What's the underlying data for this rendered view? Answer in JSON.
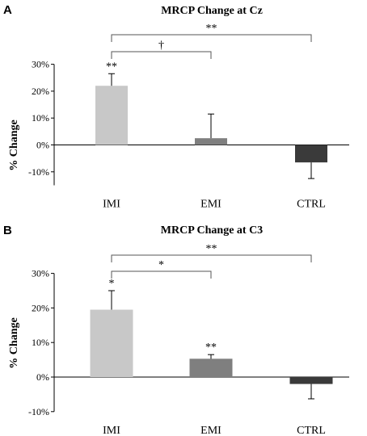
{
  "chart_data": [
    {
      "type": "bar",
      "panel": "A",
      "title": "MRCP Change at Cz",
      "ylabel": "% Change",
      "categories": [
        "IMI",
        "EMI",
        "CTRL"
      ],
      "values": [
        22,
        2.5,
        -6.5
      ],
      "error_plus": [
        4.5,
        9,
        0
      ],
      "error_minus": [
        0,
        0,
        6
      ],
      "bar_colors": [
        "#c8c8c8",
        "#7f7f7f",
        "#3a3a3a"
      ],
      "ylim": [
        -15,
        30
      ],
      "yticks": [
        -10,
        0,
        10,
        20,
        30
      ],
      "ytick_labels": [
        "-10%",
        "0%",
        "10%",
        "20%",
        "30%"
      ],
      "bar_annotations": [
        "**",
        "",
        ""
      ],
      "comparisons": [
        {
          "from": 0,
          "to": 1,
          "label": "†"
        },
        {
          "from": 0,
          "to": 2,
          "label": "**"
        }
      ]
    },
    {
      "type": "bar",
      "panel": "B",
      "title": "MRCP Change at C3",
      "ylabel": "% Change",
      "categories": [
        "IMI",
        "EMI",
        "CTRL"
      ],
      "values": [
        19.5,
        5.3,
        -2
      ],
      "error_plus": [
        5.5,
        1.2,
        0
      ],
      "error_minus": [
        0,
        0,
        4.3
      ],
      "bar_colors": [
        "#c8c8c8",
        "#7f7f7f",
        "#3a3a3a"
      ],
      "ylim": [
        -10,
        30
      ],
      "yticks": [
        -10,
        0,
        10,
        20,
        30
      ],
      "ytick_labels": [
        "-10%",
        "0%",
        "10%",
        "20%",
        "30%"
      ],
      "bar_annotations": [
        "*",
        "**",
        ""
      ],
      "comparisons": [
        {
          "from": 0,
          "to": 1,
          "label": "*"
        },
        {
          "from": 0,
          "to": 2,
          "label": "**"
        }
      ]
    }
  ]
}
